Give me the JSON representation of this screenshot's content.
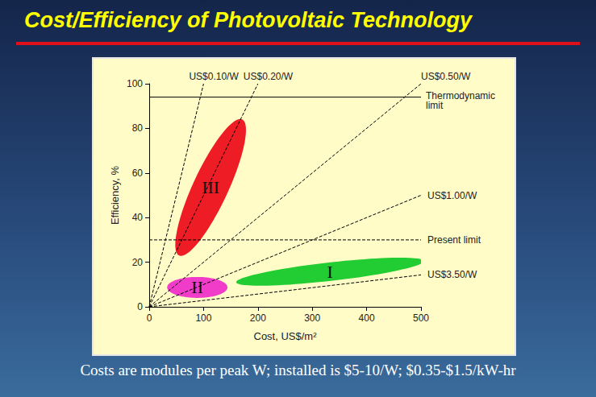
{
  "chart_data": {
    "type": "scatter",
    "title": "Cost/Efficiency of Photovoltaic Technology",
    "caption": "Costs are modules per peak W; installed is $5-10/W; $0.35-$1.5/kW-hr",
    "x_label": "Cost, US$/m²",
    "y_label": "Efficiency, %",
    "xlim": [
      0,
      500
    ],
    "ylim": [
      0,
      100
    ],
    "xticks": [
      0,
      100,
      200,
      300,
      400,
      500
    ],
    "yticks": [
      0,
      20,
      40,
      60,
      80,
      100
    ],
    "grid": false,
    "regions": [
      {
        "name": "III",
        "color": "#ee1c24",
        "ends": [
          [
            55,
            23
          ],
          [
            171,
            84
          ]
        ],
        "side": [
          142,
          50
        ]
      },
      {
        "name": "II",
        "color": "#f03cc8",
        "ends": [
          [
            33,
            8.7
          ],
          [
            144,
            8.7
          ]
        ],
        "side": [
          88.5,
          13.4
        ]
      },
      {
        "name": "I",
        "color": "#22cc33",
        "ends": [
          [
            160,
            11
          ],
          [
            505,
            20.5
          ]
        ],
        "side": [
          332,
          19.9
        ]
      }
    ],
    "series": [
      {
        "name": "US$0.10/W",
        "type": "line",
        "line_style": "dashed",
        "color": "#000000",
        "x": [
          0,
          100
        ],
        "values": [
          0,
          100
        ]
      },
      {
        "name": "US$0.20/W",
        "type": "line",
        "line_style": "dashed",
        "color": "#000000",
        "x": [
          0,
          200
        ],
        "values": [
          0,
          100
        ]
      },
      {
        "name": "US$0.50/W",
        "type": "line",
        "line_style": "dashed",
        "color": "#000000",
        "x": [
          0,
          500
        ],
        "values": [
          0,
          100
        ]
      },
      {
        "name": "US$1.00/W",
        "type": "line",
        "line_style": "dashed",
        "color": "#000000",
        "x": [
          0,
          500
        ],
        "values": [
          0,
          50
        ]
      },
      {
        "name": "US$3.50/W",
        "type": "line",
        "line_style": "dashed",
        "color": "#000000",
        "x": [
          0,
          500
        ],
        "values": [
          0,
          14.3
        ]
      },
      {
        "name": "Thermodynamic limit",
        "type": "line",
        "line_style": "solid",
        "color": "#000000",
        "x": [
          0,
          500
        ],
        "values": [
          94,
          94
        ]
      },
      {
        "name": "Present limit",
        "type": "line",
        "line_style": "dashed",
        "color": "#000000",
        "x": [
          0,
          500
        ],
        "values": [
          30,
          30
        ]
      }
    ]
  }
}
